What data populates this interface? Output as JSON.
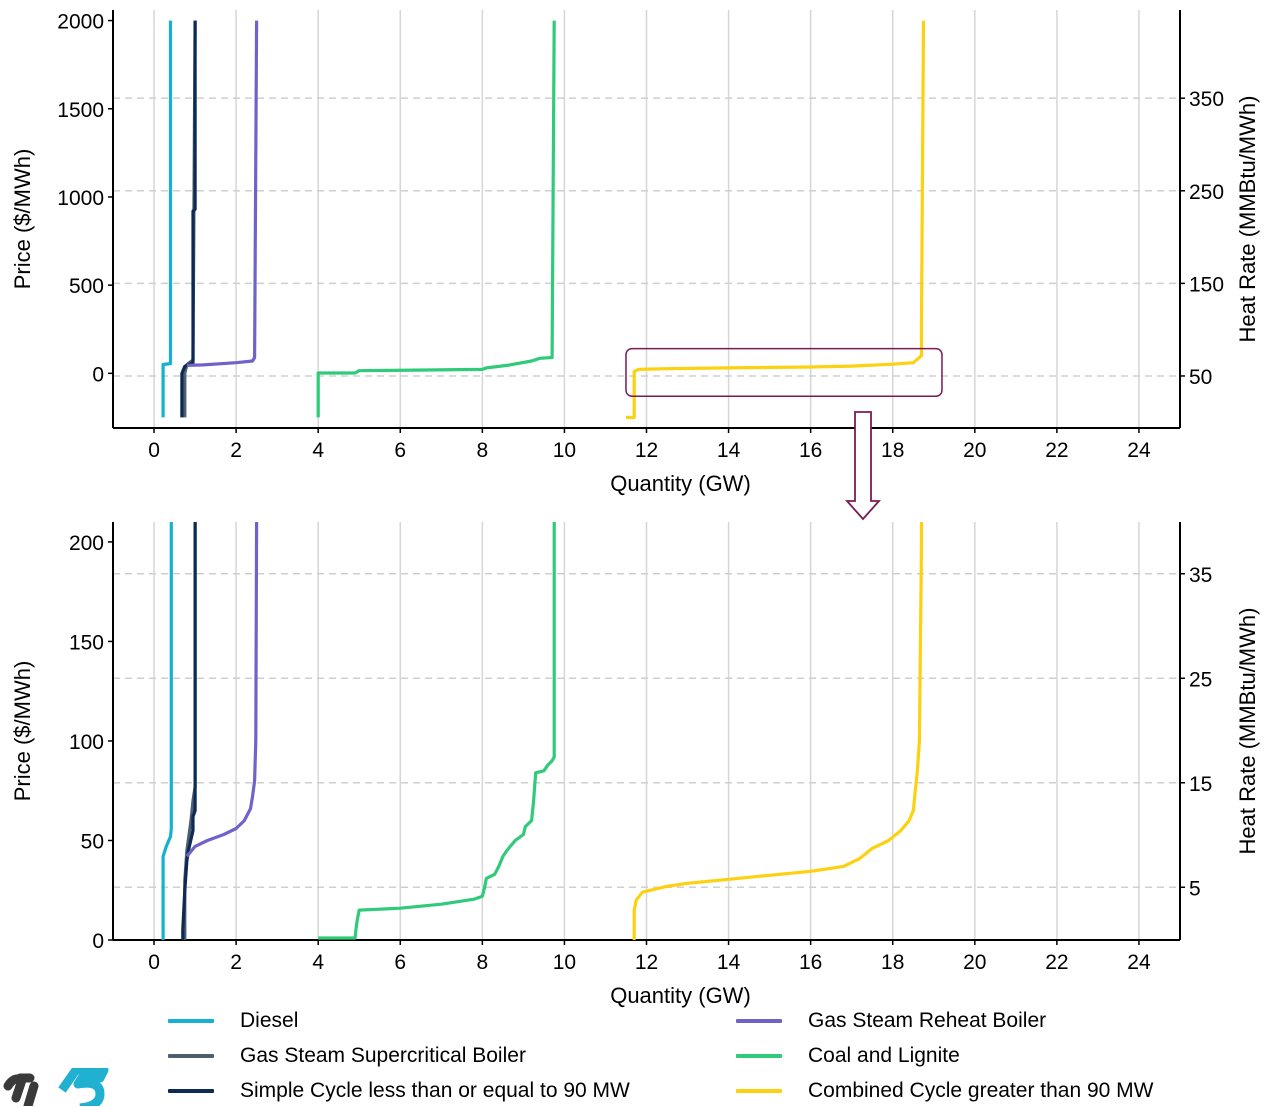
{
  "colors": {
    "diesel": "#16b0d0",
    "gas_steam_supercritical": "#4e5e72",
    "simple_cycle": "#0d2a52",
    "gas_steam_reheat": "#6f63c9",
    "coal_lignite": "#2fca7a",
    "combined_cycle": "#fcd10f",
    "zoom_box": "#7b1b52"
  },
  "legend": {
    "items": [
      {
        "key": "diesel",
        "label": "Diesel"
      },
      {
        "key": "gas_steam_supercritical",
        "label": "Gas Steam Supercritical Boiler"
      },
      {
        "key": "simple_cycle",
        "label": "Simple Cycle less than or equal to 90 MW"
      },
      {
        "key": "gas_steam_reheat",
        "label": "Gas Steam Reheat Boiler"
      },
      {
        "key": "coal_lignite",
        "label": "Coal and Lignite"
      },
      {
        "key": "combined_cycle",
        "label": "Combined Cycle greater than 90 MW"
      }
    ]
  },
  "chart_data": [
    {
      "type": "line",
      "xlabel": "Quantity (GW)",
      "ylabel": "Price ($/MWh)",
      "y2label": "Heat Rate (MMBtu/MWh)",
      "xlim": [
        -1,
        25
      ],
      "ylim": [
        -310,
        2060
      ],
      "x_ticks": [
        0,
        2,
        4,
        6,
        8,
        10,
        12,
        14,
        16,
        18,
        20,
        22,
        24
      ],
      "y_ticks": [
        0,
        500,
        1000,
        1500,
        2000
      ],
      "y2_ticks": [
        50,
        150,
        250,
        350
      ],
      "y2_tick_prices": [
        -15,
        510,
        1035,
        1560
      ],
      "grid": true,
      "zoom_box": {
        "x": [
          11.5,
          19.2
        ],
        "y": [
          -130,
          140
        ]
      },
      "series": [
        {
          "key": "diesel",
          "points": [
            [
              0.22,
              -250
            ],
            [
              0.22,
              50
            ],
            [
              0.4,
              55
            ],
            [
              0.4,
              2000
            ]
          ]
        },
        {
          "key": "gas_steam_supercritical",
          "points": [
            [
              0.75,
              -250
            ],
            [
              0.75,
              0
            ],
            [
              0.8,
              50
            ],
            [
              0.95,
              75
            ],
            [
              1.0,
              2000
            ]
          ]
        },
        {
          "key": "simple_cycle",
          "points": [
            [
              0.68,
              -250
            ],
            [
              0.68,
              0
            ],
            [
              0.75,
              40
            ],
            [
              0.95,
              60
            ],
            [
              0.95,
              920
            ],
            [
              1.0,
              930
            ],
            [
              1.0,
              2000
            ]
          ]
        },
        {
          "key": "gas_steam_reheat",
          "points": [
            [
              0.8,
              45
            ],
            [
              1.2,
              48
            ],
            [
              2.0,
              60
            ],
            [
              2.4,
              70
            ],
            [
              2.45,
              90
            ],
            [
              2.5,
              2000
            ]
          ]
        },
        {
          "key": "coal_lignite",
          "points": [
            [
              4.0,
              -250
            ],
            [
              4.0,
              2
            ],
            [
              4.9,
              2
            ],
            [
              5.0,
              15
            ],
            [
              8.0,
              22
            ],
            [
              8.1,
              31
            ],
            [
              8.6,
              45
            ],
            [
              9.2,
              70
            ],
            [
              9.4,
              85
            ],
            [
              9.7,
              90
            ],
            [
              9.75,
              2000
            ]
          ]
        },
        {
          "key": "combined_cycle",
          "points": [
            [
              11.5,
              -250
            ],
            [
              11.7,
              -250
            ],
            [
              11.7,
              10
            ],
            [
              11.8,
              22
            ],
            [
              12.5,
              26
            ],
            [
              14.0,
              31
            ],
            [
              16.0,
              36
            ],
            [
              17.0,
              41
            ],
            [
              18.0,
              52
            ],
            [
              18.5,
              60
            ],
            [
              18.7,
              100
            ],
            [
              18.7,
              300
            ],
            [
              18.75,
              2000
            ]
          ]
        }
      ]
    },
    {
      "type": "line",
      "xlabel": "Quantity (GW)",
      "ylabel": "Price ($/MWh)",
      "y2label": "Heat Rate (MMBtu/MWh)",
      "xlim": [
        -1,
        25
      ],
      "ylim": [
        0,
        210
      ],
      "x_ticks": [
        0,
        2,
        4,
        6,
        8,
        10,
        12,
        14,
        16,
        18,
        20,
        22,
        24
      ],
      "y_ticks": [
        0,
        50,
        100,
        150,
        200
      ],
      "y2_ticks": [
        5,
        15,
        25,
        35
      ],
      "y2_tick_prices": [
        26.5,
        79,
        131.5,
        184
      ],
      "grid": true,
      "series": [
        {
          "key": "diesel",
          "points": [
            [
              0.22,
              0
            ],
            [
              0.22,
              42
            ],
            [
              0.3,
              47
            ],
            [
              0.4,
              52
            ],
            [
              0.42,
              56
            ],
            [
              0.42,
              210
            ]
          ]
        },
        {
          "key": "gas_steam_supercritical",
          "points": [
            [
              0.75,
              0
            ],
            [
              0.75,
              30
            ],
            [
              0.8,
              45
            ],
            [
              0.9,
              60
            ],
            [
              0.95,
              70
            ],
            [
              1.0,
              77
            ],
            [
              1.0,
              210
            ]
          ]
        },
        {
          "key": "simple_cycle",
          "points": [
            [
              0.7,
              0
            ],
            [
              0.7,
              5
            ],
            [
              0.75,
              25
            ],
            [
              0.8,
              40
            ],
            [
              0.85,
              46
            ],
            [
              0.95,
              55
            ],
            [
              0.95,
              62
            ],
            [
              1.0,
              65
            ],
            [
              1.0,
              210
            ]
          ]
        },
        {
          "key": "gas_steam_reheat",
          "points": [
            [
              0.8,
              42
            ],
            [
              1.0,
              47
            ],
            [
              1.3,
              50
            ],
            [
              1.7,
              53
            ],
            [
              2.0,
              56
            ],
            [
              2.2,
              60
            ],
            [
              2.35,
              66
            ],
            [
              2.4,
              72
            ],
            [
              2.45,
              80
            ],
            [
              2.48,
              100
            ],
            [
              2.5,
              210
            ]
          ]
        },
        {
          "key": "coal_lignite",
          "points": [
            [
              4.0,
              1
            ],
            [
              4.9,
              1
            ],
            [
              4.92,
              5
            ],
            [
              4.95,
              10
            ],
            [
              5.0,
              15
            ],
            [
              6.0,
              16
            ],
            [
              7.0,
              18
            ],
            [
              7.8,
              20.5
            ],
            [
              8.0,
              22
            ],
            [
              8.05,
              26
            ],
            [
              8.1,
              31
            ],
            [
              8.3,
              33
            ],
            [
              8.4,
              37
            ],
            [
              8.5,
              42
            ],
            [
              8.6,
              45
            ],
            [
              8.8,
              50
            ],
            [
              9.0,
              53
            ],
            [
              9.05,
              57
            ],
            [
              9.2,
              60
            ],
            [
              9.25,
              70
            ],
            [
              9.3,
              84
            ],
            [
              9.5,
              85
            ],
            [
              9.6,
              88
            ],
            [
              9.7,
              90
            ],
            [
              9.75,
              92
            ],
            [
              9.75,
              210
            ]
          ]
        },
        {
          "key": "combined_cycle",
          "points": [
            [
              11.7,
              0
            ],
            [
              11.7,
              15
            ],
            [
              11.75,
              20
            ],
            [
              11.9,
              24
            ],
            [
              12.5,
              27
            ],
            [
              13.0,
              28.5
            ],
            [
              14.0,
              30.5
            ],
            [
              15.0,
              32.5
            ],
            [
              16.0,
              34.5
            ],
            [
              16.8,
              37
            ],
            [
              17.2,
              41
            ],
            [
              17.5,
              46
            ],
            [
              17.9,
              50
            ],
            [
              18.2,
              55
            ],
            [
              18.4,
              60
            ],
            [
              18.5,
              65
            ],
            [
              18.55,
              75
            ],
            [
              18.6,
              85
            ],
            [
              18.65,
              100
            ],
            [
              18.7,
              200
            ],
            [
              18.7,
              210
            ]
          ]
        }
      ]
    }
  ]
}
